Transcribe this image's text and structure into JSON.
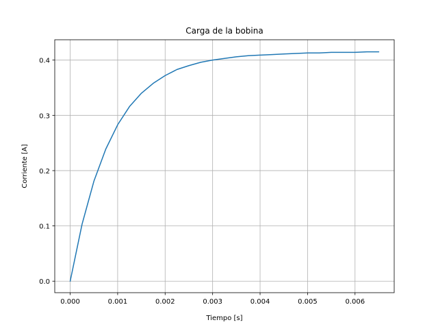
{
  "chart_data": {
    "type": "line",
    "title": "Carga de la bobina",
    "xlabel": "Tiempo [s]",
    "ylabel": "Corriente [A]",
    "xlim": [
      -0.000325,
      0.006825
    ],
    "ylim": [
      -0.0208,
      0.4368
    ],
    "xticks": [
      0.0,
      0.001,
      0.002,
      0.003,
      0.004,
      0.005,
      0.006
    ],
    "xtick_labels": [
      "0.000",
      "0.001",
      "0.002",
      "0.003",
      "0.004",
      "0.005",
      "0.006"
    ],
    "yticks": [
      0.0,
      0.1,
      0.2,
      0.3,
      0.4
    ],
    "ytick_labels": [
      "0.0",
      "0.1",
      "0.2",
      "0.3",
      "0.4"
    ],
    "grid": true,
    "series": [
      {
        "color": "#1f77b4",
        "x": [
          0.0,
          0.00025,
          0.0005,
          0.00075,
          0.001,
          0.00125,
          0.0015,
          0.00175,
          0.002,
          0.00225,
          0.0025,
          0.00275,
          0.003,
          0.00325,
          0.0035,
          0.00375,
          0.004,
          0.00425,
          0.0045,
          0.00475,
          0.005,
          0.00525,
          0.0055,
          0.00575,
          0.006,
          0.00625,
          0.0065
        ],
        "y": [
          0.0,
          0.103,
          0.181,
          0.239,
          0.283,
          0.316,
          0.34,
          0.358,
          0.372,
          0.383,
          0.39,
          0.396,
          0.4,
          0.403,
          0.406,
          0.408,
          0.409,
          0.41,
          0.411,
          0.412,
          0.413,
          0.413,
          0.414,
          0.414,
          0.414,
          0.415,
          0.415
        ]
      }
    ]
  }
}
